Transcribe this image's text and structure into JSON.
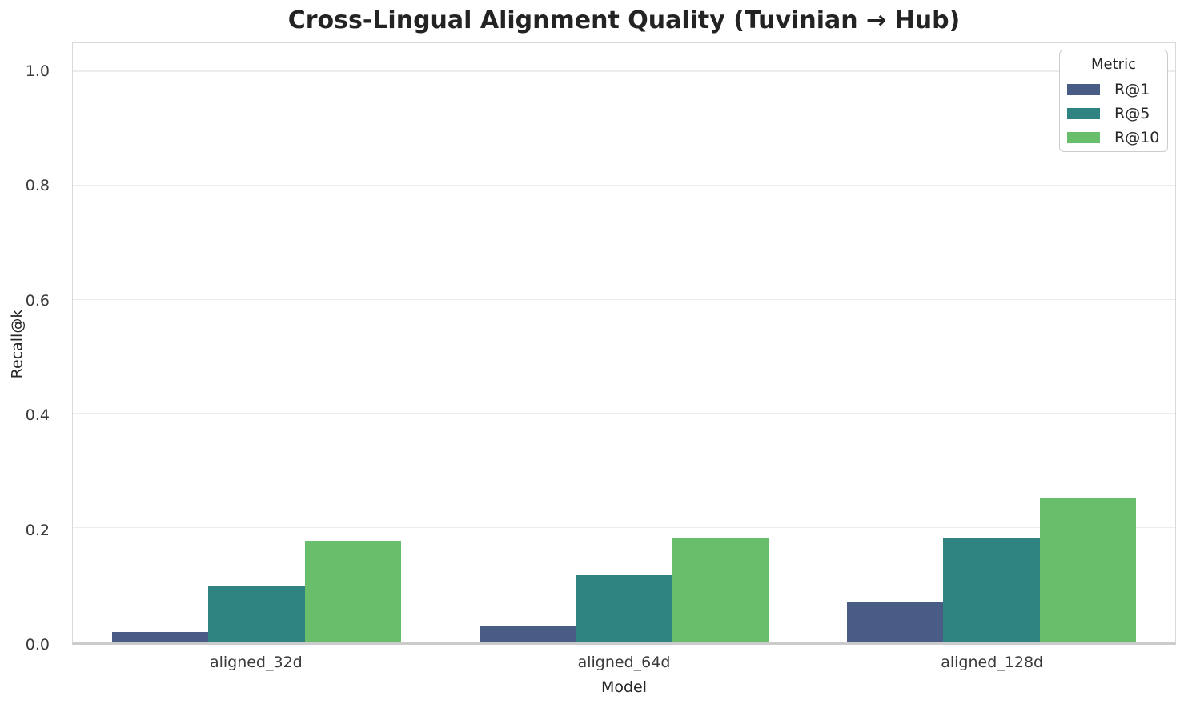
{
  "chart_data": {
    "type": "bar",
    "title": "Cross-Lingual Alignment Quality (Tuvinian → Hub)",
    "xlabel": "Model",
    "ylabel": "Recall@k",
    "categories": [
      "aligned_32d",
      "aligned_64d",
      "aligned_128d"
    ],
    "series": [
      {
        "name": "R@1",
        "color": "#485C85",
        "values": [
          0.018,
          0.03,
          0.07
        ]
      },
      {
        "name": "R@5",
        "color": "#2F8380",
        "values": [
          0.1,
          0.118,
          0.184
        ]
      },
      {
        "name": "R@10",
        "color": "#69BE6C",
        "values": [
          0.178,
          0.184,
          0.252
        ]
      }
    ],
    "ylim": [
      0,
      1.05
    ],
    "yticks": [
      0.0,
      0.2,
      0.4,
      0.6,
      0.8,
      1.0
    ],
    "ytick_labels": [
      "0.0",
      "0.2",
      "0.4",
      "0.6",
      "0.8",
      "1.0"
    ],
    "legend_title": "Metric",
    "legend_position": "upper right",
    "grid": true
  },
  "style_colors": {
    "gridline": "#ececec",
    "spine": "#d9d9d9",
    "bottom_axis": "#cbcbcb",
    "text": "#262626",
    "tick_text": "#3a3a3a"
  }
}
